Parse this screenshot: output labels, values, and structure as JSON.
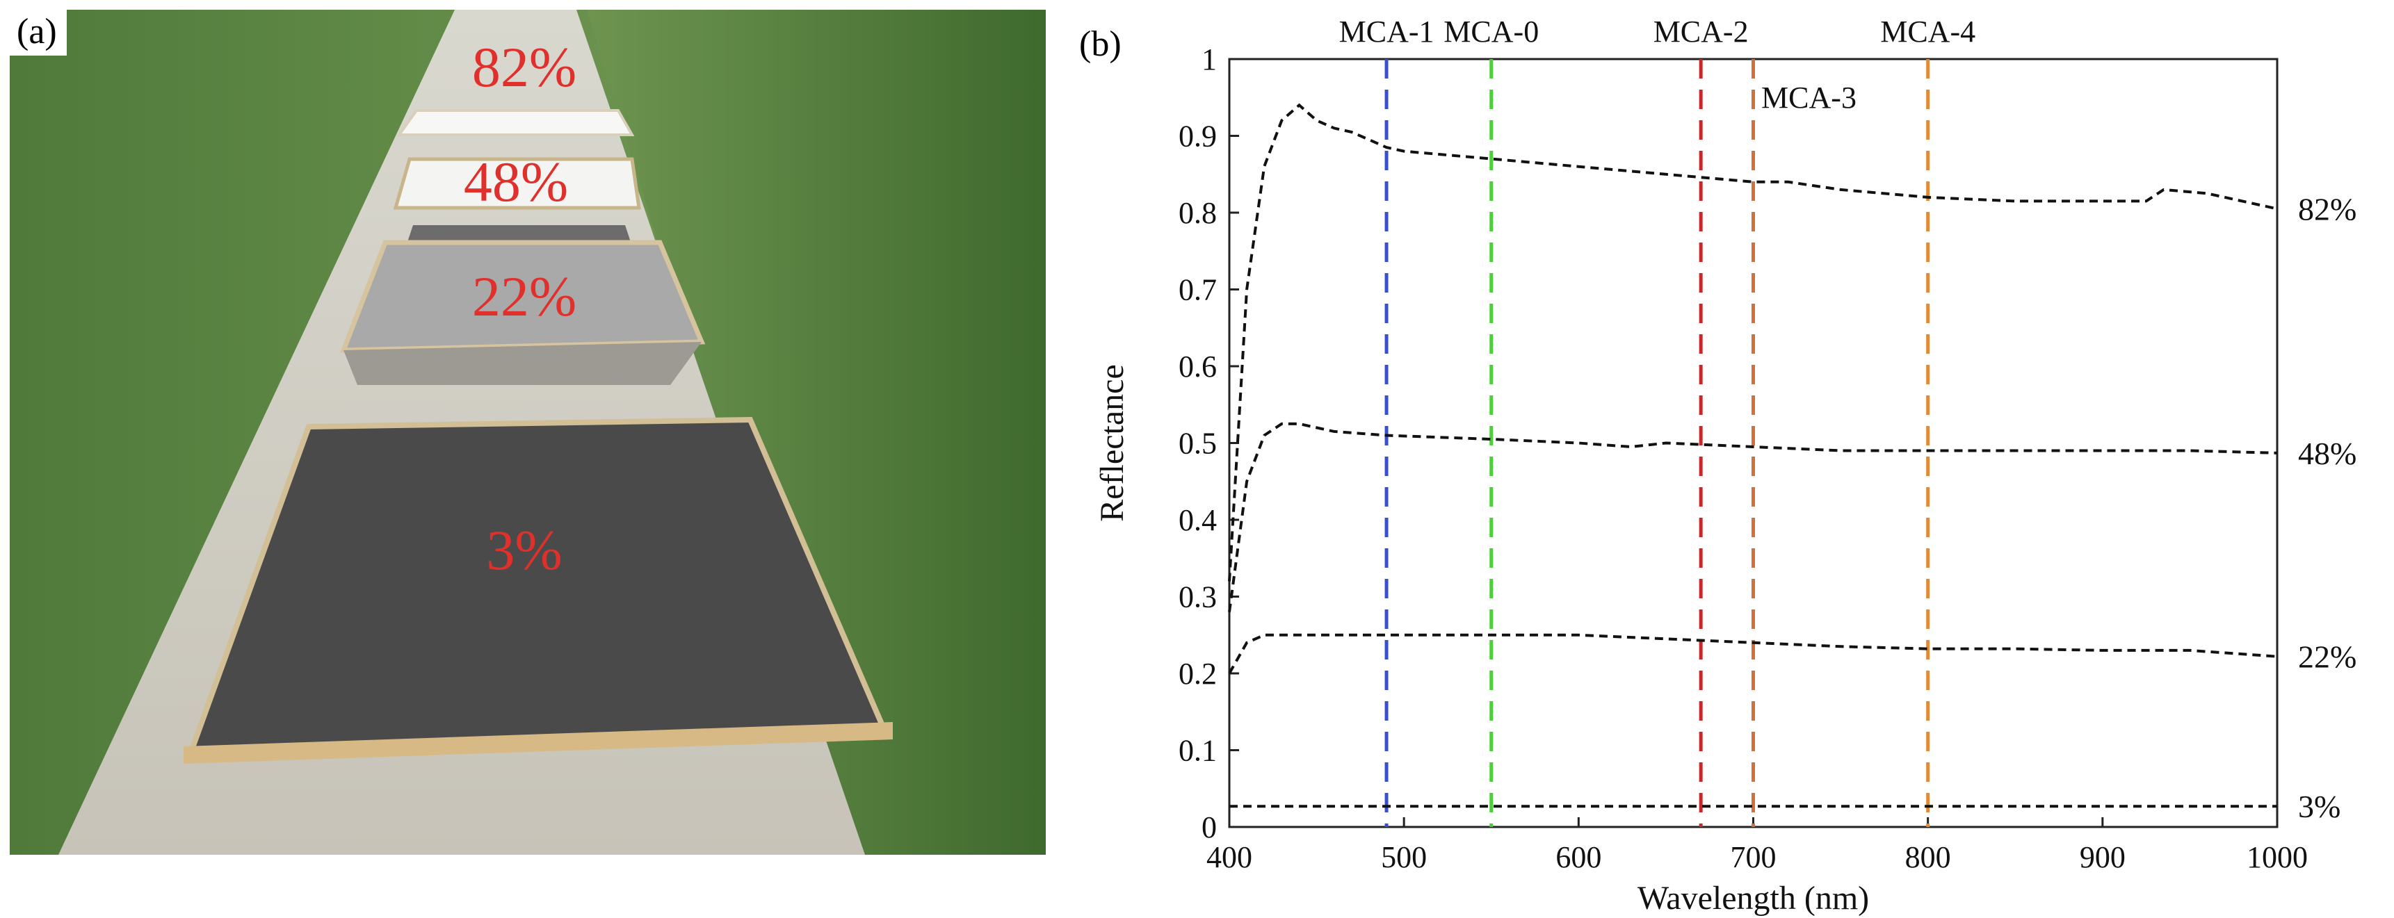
{
  "figure": {
    "panel_a_tag": "(a)",
    "panel_b_tag": "(b)",
    "photo_description_labels": [
      "82%",
      "48%",
      "22%",
      "3%"
    ]
  },
  "chart_data": {
    "type": "line",
    "title": "",
    "xlabel": "Wavelength (nm)",
    "ylabel": "Reflectance",
    "xlim": [
      400,
      1000
    ],
    "ylim": [
      0,
      1
    ],
    "x_ticks": [
      400,
      500,
      600,
      700,
      800,
      900,
      1000
    ],
    "y_ticks": [
      0,
      0.1,
      0.2,
      0.3,
      0.4,
      0.5,
      0.6,
      0.7,
      0.8,
      0.9,
      1
    ],
    "y_tick_labels": [
      "0",
      "0.1",
      "0.2",
      "0.3",
      "0.4",
      "0.5",
      "0.6",
      "0.7",
      "0.8",
      "0.9",
      "1"
    ],
    "series": [
      {
        "name": "82%",
        "x": [
          400,
          410,
          420,
          430,
          440,
          450,
          460,
          470,
          480,
          490,
          500,
          550,
          600,
          650,
          700,
          720,
          750,
          800,
          850,
          900,
          925,
          935,
          960,
          1000
        ],
        "values": [
          0.32,
          0.7,
          0.86,
          0.92,
          0.94,
          0.92,
          0.91,
          0.905,
          0.895,
          0.885,
          0.88,
          0.87,
          0.86,
          0.85,
          0.84,
          0.84,
          0.83,
          0.82,
          0.815,
          0.815,
          0.815,
          0.83,
          0.825,
          0.805
        ]
      },
      {
        "name": "48%",
        "x": [
          400,
          410,
          420,
          430,
          440,
          460,
          490,
          550,
          600,
          630,
          650,
          700,
          750,
          800,
          850,
          900,
          950,
          1000
        ],
        "values": [
          0.28,
          0.45,
          0.51,
          0.525,
          0.525,
          0.515,
          0.51,
          0.505,
          0.5,
          0.495,
          0.5,
          0.495,
          0.49,
          0.49,
          0.49,
          0.49,
          0.49,
          0.487
        ]
      },
      {
        "name": "22%",
        "x": [
          400,
          410,
          420,
          440,
          500,
          550,
          600,
          650,
          700,
          750,
          800,
          850,
          900,
          950,
          1000
        ],
        "values": [
          0.2,
          0.24,
          0.25,
          0.25,
          0.25,
          0.25,
          0.25,
          0.245,
          0.24,
          0.235,
          0.232,
          0.232,
          0.23,
          0.23,
          0.222
        ]
      },
      {
        "name": "3%",
        "x": [
          400,
          500,
          600,
          700,
          800,
          900,
          1000
        ],
        "values": [
          0.027,
          0.027,
          0.027,
          0.027,
          0.027,
          0.027,
          0.027
        ]
      }
    ],
    "bands": [
      {
        "name": "MCA-1",
        "x": 490,
        "color": "#3a4fd0"
      },
      {
        "name": "MCA-0",
        "x": 550,
        "color": "#4ccf3a"
      },
      {
        "name": "MCA-2",
        "x": 670,
        "color": "#c8282a"
      },
      {
        "name": "MCA-3",
        "x": 700,
        "color": "#d0703a"
      },
      {
        "name": "MCA-4",
        "x": 800,
        "color": "#e08a3a"
      }
    ],
    "grid": false,
    "legend": "none"
  }
}
